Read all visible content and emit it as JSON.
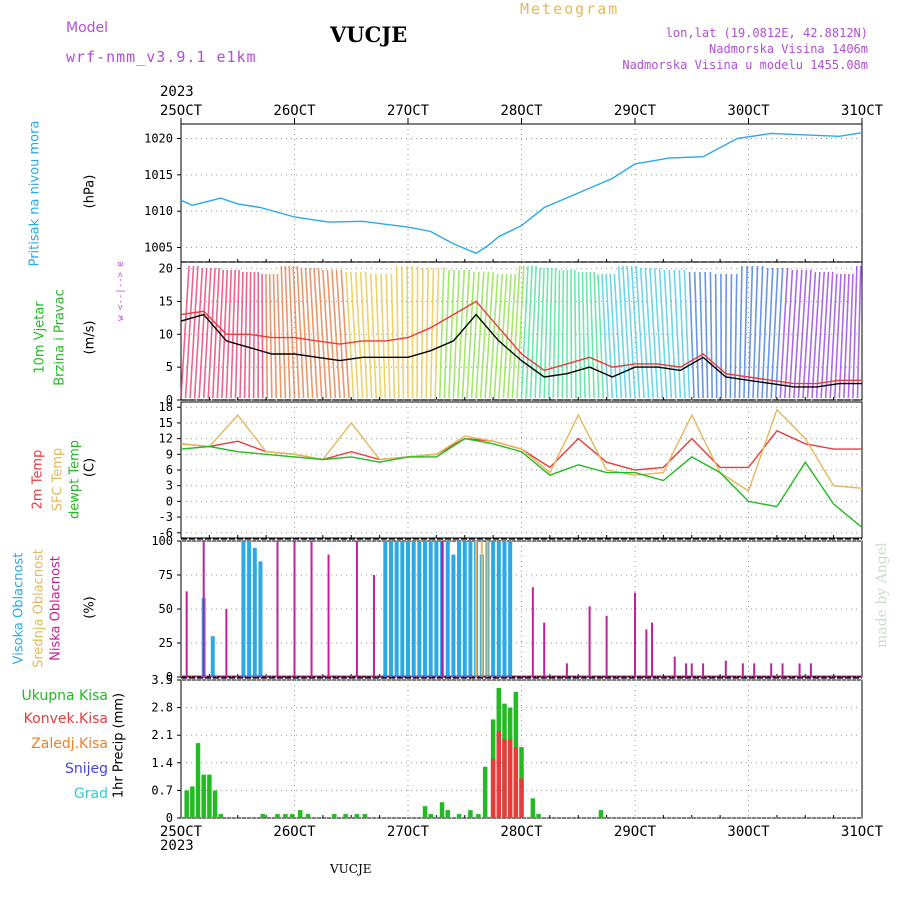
{
  "header": {
    "model_label": "Model",
    "model_name": "wrf-nmm_v3.9.1 e1km",
    "station": "VUCJE",
    "meteogram": "Meteogram",
    "lonlat": "lon,lat (19.0812E, 42.8812N)",
    "elevation": "Nadmorska Visina 1406m",
    "model_elevation": "Nadmorska Visina u modelu 1455.08m",
    "year_top": "2023",
    "year_bottom": "2023",
    "footer_station": "VUCJE",
    "watermark": "made by Angel",
    "colors": {
      "purple": "#b44cd6",
      "gold": "#e6b85a",
      "cyan": "#29a9e8",
      "green": "#22bb22",
      "red": "#e83c3c",
      "orange": "#e8822c",
      "blue": "#4444dd",
      "teal": "#33cccc"
    }
  },
  "axis_labels": {
    "pressure": "Pritisak na nivou mora",
    "pressure_unit": "(hPa)",
    "wind_line1": "10m Vjetar",
    "wind_line2": "Brzina i Pravac",
    "wind_unit": "(m/s)",
    "compass": "w <--|--> e",
    "temp_2m": "2m Temp",
    "temp_sfc": "SFC Temp",
    "temp_dew": "dewpt Temp",
    "temp_unit": "(C)",
    "cloud_high": "Visoka Oblacnost",
    "cloud_mid": "Srednja Oblacnost",
    "cloud_low": "Niska Oblacnost",
    "cloud_unit": "(%)",
    "precip_unit": "1hr Precip (mm)",
    "legend_total": "Ukupna Kisa",
    "legend_conv": "Konvek.Kisa",
    "legend_frozen": "Zaledj.Kisa",
    "legend_snow": "Snijeg",
    "legend_hail": "Grad"
  },
  "chart_data": [
    {
      "type": "line",
      "name": "pressure",
      "x_categories": [
        "25OCT",
        "26OCT",
        "27OCT",
        "28OCT",
        "29OCT",
        "30OCT",
        "31OCT"
      ],
      "ylim": [
        1003,
        1022
      ],
      "yticks": [
        1005,
        1010,
        1015,
        1020
      ],
      "grid": true,
      "series": [
        {
          "name": "Pritisak na nivou mora",
          "color": "#29a9e8",
          "x": [
            0,
            0.1,
            0.2,
            0.35,
            0.5,
            0.7,
            1.0,
            1.3,
            1.6,
            2.0,
            2.2,
            2.4,
            2.6,
            2.7,
            2.8,
            3.0,
            3.2,
            3.5,
            3.8,
            4.0,
            4.3,
            4.6,
            4.9,
            5.2,
            5.5,
            5.8,
            6.0
          ],
          "values": [
            1011.5,
            1010.8,
            1011.2,
            1011.8,
            1011.0,
            1010.5,
            1009.2,
            1008.5,
            1008.6,
            1007.8,
            1007.2,
            1005.5,
            1004.2,
            1005.2,
            1006.5,
            1008.0,
            1010.5,
            1012.5,
            1014.5,
            1016.5,
            1017.3,
            1017.5,
            1020.0,
            1020.7,
            1020.5,
            1020.3,
            1020.8
          ]
        }
      ]
    },
    {
      "type": "line",
      "name": "wind",
      "x_categories": [
        "25OCT",
        "26OCT",
        "27OCT",
        "28OCT",
        "29OCT",
        "30OCT",
        "31OCT"
      ],
      "ylim": [
        0,
        21
      ],
      "yticks": [
        0,
        5,
        10,
        15,
        20
      ],
      "grid": true,
      "series": [
        {
          "name": "wind speed",
          "color": "#000000",
          "x": [
            0,
            0.2,
            0.4,
            0.6,
            0.8,
            1.0,
            1.2,
            1.4,
            1.6,
            1.8,
            2.0,
            2.2,
            2.4,
            2.6,
            2.8,
            3.0,
            3.2,
            3.4,
            3.6,
            3.8,
            4.0,
            4.2,
            4.4,
            4.6,
            4.8,
            5.0,
            5.2,
            5.4,
            5.6,
            5.8,
            6.0
          ],
          "values": [
            12,
            13,
            9,
            8,
            7,
            7,
            6.5,
            6,
            6.5,
            6.5,
            6.5,
            7.5,
            9,
            13,
            9,
            6,
            3.5,
            4,
            5,
            3.5,
            5,
            5,
            4.5,
            6.5,
            3.5,
            3,
            2.5,
            2,
            2,
            2.5,
            2.5
          ]
        },
        {
          "name": "wind gust",
          "color": "#e83c3c",
          "x": [
            0,
            0.2,
            0.4,
            0.6,
            0.8,
            1.0,
            1.2,
            1.4,
            1.6,
            1.8,
            2.0,
            2.2,
            2.4,
            2.6,
            2.8,
            3.0,
            3.2,
            3.4,
            3.6,
            3.8,
            4.0,
            4.2,
            4.4,
            4.6,
            4.8,
            5.0,
            5.2,
            5.4,
            5.6,
            5.8,
            6.0
          ],
          "values": [
            13,
            13.5,
            10,
            10,
            9.5,
            9.5,
            9,
            8.5,
            9,
            9,
            9.5,
            11,
            13,
            15,
            11,
            7,
            4.5,
            5.5,
            6.5,
            5,
            5.5,
            5.5,
            5,
            7,
            4,
            3.5,
            3,
            2.5,
            2.5,
            3,
            3
          ]
        }
      ]
    },
    {
      "type": "line",
      "name": "temperature",
      "x_categories": [
        "25OCT",
        "26OCT",
        "27OCT",
        "28OCT",
        "29OCT",
        "30OCT",
        "31OCT"
      ],
      "ylim": [
        -7,
        19
      ],
      "yticks": [
        -6,
        -3,
        0,
        3,
        6,
        9,
        12,
        15,
        18
      ],
      "grid": true,
      "series": [
        {
          "name": "2m Temp",
          "color": "#e83c3c",
          "x": [
            0,
            0.25,
            0.5,
            0.75,
            1.0,
            1.25,
            1.5,
            1.75,
            2.0,
            2.25,
            2.5,
            2.75,
            3.0,
            3.25,
            3.5,
            3.75,
            4.0,
            4.25,
            4.5,
            4.75,
            5.0,
            5.25,
            5.5,
            5.75,
            6.0
          ],
          "values": [
            11,
            10.5,
            11.5,
            9.5,
            9,
            8,
            9.5,
            8,
            8.5,
            9,
            12,
            11.5,
            10,
            6.5,
            12,
            7.5,
            6,
            6.5,
            12,
            6.5,
            6.5,
            13.5,
            11,
            10,
            10
          ]
        },
        {
          "name": "SFC Temp",
          "color": "#e6b85a",
          "x": [
            0,
            0.25,
            0.5,
            0.75,
            1.0,
            1.25,
            1.5,
            1.75,
            2.0,
            2.25,
            2.5,
            2.75,
            3.0,
            3.25,
            3.5,
            3.75,
            4.0,
            4.25,
            4.5,
            4.75,
            5.0,
            5.25,
            5.5,
            5.75,
            6.0
          ],
          "values": [
            11,
            10.5,
            16.5,
            9.5,
            9,
            8,
            15,
            8,
            8.5,
            9,
            12.5,
            11.5,
            10,
            5.5,
            16.5,
            6,
            5,
            5.5,
            16.5,
            5.5,
            2,
            17.5,
            12,
            3,
            2.5
          ]
        },
        {
          "name": "dewpt Temp",
          "color": "#22bb22",
          "x": [
            0,
            0.25,
            0.5,
            0.75,
            1.0,
            1.25,
            1.5,
            1.75,
            2.0,
            2.25,
            2.5,
            2.75,
            3.0,
            3.25,
            3.5,
            3.75,
            4.0,
            4.25,
            4.5,
            4.75,
            5.0,
            5.25,
            5.5,
            5.75,
            6.0
          ],
          "values": [
            10,
            10.5,
            9.5,
            9,
            8.5,
            8,
            8.5,
            7.5,
            8.5,
            8.5,
            12,
            11,
            9.5,
            5,
            7,
            5.5,
            5.5,
            4,
            8.5,
            5.5,
            0,
            -1,
            7.5,
            -0.5,
            -5
          ]
        }
      ]
    },
    {
      "type": "bar",
      "name": "cloud_cover",
      "x_categories": [
        "25OCT",
        "26OCT",
        "27OCT",
        "28OCT",
        "29OCT",
        "30OCT",
        "31OCT"
      ],
      "ylim": [
        0,
        100
      ],
      "yticks": [
        0,
        25,
        50,
        75,
        100
      ],
      "grid": true,
      "series": [
        {
          "name": "Visoka Oblacnost",
          "color": "#29a9e8",
          "x": [
            0.2,
            0.28,
            0.55,
            0.6,
            0.65,
            0.7,
            1.8,
            1.85,
            1.9,
            1.95,
            2.0,
            2.05,
            2.1,
            2.15,
            2.2,
            2.25,
            2.3,
            2.35,
            2.4,
            2.45,
            2.5,
            2.55,
            2.6,
            2.65,
            2.7,
            2.75,
            2.8,
            2.85,
            2.9
          ],
          "values": [
            58,
            30,
            100,
            100,
            95,
            85,
            100,
            100,
            100,
            100,
            100,
            100,
            100,
            100,
            100,
            100,
            100,
            100,
            90,
            100,
            100,
            100,
            100,
            90,
            100,
            100,
            100,
            100,
            100
          ]
        },
        {
          "name": "Srednja Oblacnost",
          "color": "#e6b85a",
          "x": [
            2.6,
            2.65,
            2.7
          ],
          "values": [
            100,
            100,
            100
          ]
        },
        {
          "name": "Niska Oblacnost",
          "color": "#c0209a",
          "x": [
            0.05,
            0.2,
            0.4,
            0.85,
            1.0,
            1.15,
            1.3,
            1.55,
            1.7,
            2.3,
            3.1,
            3.2,
            3.4,
            3.6,
            3.75,
            4.0,
            4.1,
            4.15,
            4.35,
            4.45,
            4.5,
            4.6,
            4.8,
            4.95,
            5.05,
            5.2,
            5.3,
            5.45,
            5.55
          ],
          "values": [
            63,
            100,
            50,
            100,
            100,
            100,
            90,
            100,
            75,
            100,
            66,
            40,
            10,
            52,
            45,
            62,
            35,
            40,
            15,
            10,
            10,
            10,
            12,
            10,
            10,
            10,
            10,
            10,
            10
          ]
        }
      ]
    },
    {
      "type": "bar",
      "name": "precipitation",
      "x_categories": [
        "25OCT",
        "26OCT",
        "27OCT",
        "28OCT",
        "29OCT",
        "30OCT",
        "31OCT"
      ],
      "ylim": [
        0,
        3.5
      ],
      "yticks": [
        0,
        0.7,
        1.4,
        2.1,
        2.8,
        3.5
      ],
      "grid": true,
      "series": [
        {
          "name": "Ukupna Kisa",
          "color": "#22bb22",
          "x": [
            0.05,
            0.1,
            0.15,
            0.2,
            0.25,
            0.3,
            0.35,
            0.72,
            0.85,
            0.92,
            0.98,
            1.05,
            1.12,
            1.35,
            1.45,
            1.55,
            1.62,
            2.15,
            2.2,
            2.3,
            2.35,
            2.45,
            2.55,
            2.62,
            2.68,
            2.75,
            2.8,
            2.85,
            2.9,
            2.95,
            3.0,
            3.1,
            3.15,
            3.7
          ],
          "values": [
            0.7,
            0.8,
            1.9,
            1.1,
            1.1,
            0.7,
            0.1,
            0.1,
            0.1,
            0.1,
            0.1,
            0.2,
            0.1,
            0.1,
            0.1,
            0.1,
            0.1,
            0.3,
            0.1,
            0.4,
            0.2,
            0.1,
            0.2,
            0.1,
            1.3,
            2.5,
            3.3,
            2.9,
            2.8,
            3.2,
            1.8,
            0.5,
            0.1,
            0.2
          ]
        },
        {
          "name": "Konvek.Kisa",
          "color": "#e83c3c",
          "x": [
            2.75,
            2.8,
            2.85,
            2.9,
            2.95,
            3.0
          ],
          "values": [
            1.5,
            2.2,
            2.0,
            2.0,
            1.8,
            1.0
          ]
        }
      ]
    }
  ]
}
